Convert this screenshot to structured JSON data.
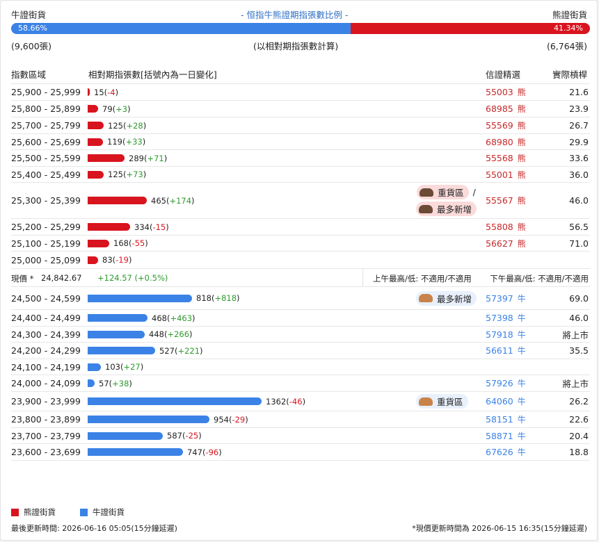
{
  "header": {
    "bull_title": "牛證街貨",
    "chart_title": "- 恒指牛熊證期指張數比例 -",
    "bear_title": "熊證街貨",
    "bull_pct": "58.66%",
    "bear_pct": "41.34%",
    "bull_ratio": 0.5866,
    "bull_count": "(9,600張)",
    "note": "(以相對期指張數計算)",
    "bear_count": "(6,764張)"
  },
  "columns": {
    "range": "指數區域",
    "contracts": "相對期指張數[括號內為一日變化]",
    "code": "信證精選",
    "leverage": "實際槓桿"
  },
  "max_contracts": 1362,
  "bear_rows": [
    {
      "range": "25,900 - 25,999",
      "value": 15,
      "value_text": "15",
      "change": "-4",
      "code": "55003",
      "type_label": "熊",
      "leverage": "21.6"
    },
    {
      "range": "25,800 - 25,899",
      "value": 79,
      "value_text": "79",
      "change": "+3",
      "code": "68985",
      "type_label": "熊",
      "leverage": "23.9"
    },
    {
      "range": "25,700 - 25,799",
      "value": 125,
      "value_text": "125",
      "change": "+28",
      "code": "55569",
      "type_label": "熊",
      "leverage": "26.7"
    },
    {
      "range": "25,600 - 25,699",
      "value": 119,
      "value_text": "119",
      "change": "+33",
      "code": "68980",
      "type_label": "熊",
      "leverage": "29.9"
    },
    {
      "range": "25,500 - 25,599",
      "value": 289,
      "value_text": "289",
      "change": "+71",
      "code": "55568",
      "type_label": "熊",
      "leverage": "33.6"
    },
    {
      "range": "25,400 - 25,499",
      "value": 125,
      "value_text": "125",
      "change": "+73",
      "code": "55001",
      "type_label": "熊",
      "leverage": "36.0"
    },
    {
      "range": "25,300 - 25,399",
      "value": 465,
      "value_text": "465",
      "change": "+174",
      "code": "55567",
      "type_label": "熊",
      "leverage": "46.0",
      "badges": [
        "重貨區",
        "最多新增"
      ],
      "slash": "/"
    },
    {
      "range": "25,200 - 25,299",
      "value": 334,
      "value_text": "334",
      "change": "-15",
      "code": "55808",
      "type_label": "熊",
      "leverage": "56.5"
    },
    {
      "range": "25,100 - 25,199",
      "value": 168,
      "value_text": "168",
      "change": "-55",
      "code": "56627",
      "type_label": "熊",
      "leverage": "71.0"
    },
    {
      "range": "25,000 - 25,099",
      "value": 83,
      "value_text": "83",
      "change": "-19",
      "code": "",
      "type_label": "",
      "leverage": ""
    }
  ],
  "spot": {
    "label": "現價 *",
    "price": "24,842.67",
    "change": "+124.57 (+0.5%)",
    "am": "上午最高/低: 不適用/不適用",
    "pm": "下午最高/低: 不適用/不適用"
  },
  "bull_rows": [
    {
      "range": "24,500 - 24,599",
      "value": 818,
      "value_text": "818",
      "change": "+818",
      "code": "57397",
      "type_label": "牛",
      "leverage": "69.0",
      "badges": [
        "最多新增"
      ]
    },
    {
      "range": "24,400 - 24,499",
      "value": 468,
      "value_text": "468",
      "change": "+463",
      "code": "57398",
      "type_label": "牛",
      "leverage": "46.0"
    },
    {
      "range": "24,300 - 24,399",
      "value": 448,
      "value_text": "448",
      "change": "+266",
      "code": "57918",
      "type_label": "牛",
      "leverage": "將上市"
    },
    {
      "range": "24,200 - 24,299",
      "value": 527,
      "value_text": "527",
      "change": "+221",
      "code": "56611",
      "type_label": "牛",
      "leverage": "35.5"
    },
    {
      "range": "24,100 - 24,199",
      "value": 103,
      "value_text": "103",
      "change": "+27",
      "code": "",
      "type_label": "",
      "leverage": ""
    },
    {
      "range": "24,000 - 24,099",
      "value": 57,
      "value_text": "57",
      "change": "+38",
      "code": "57926",
      "type_label": "牛",
      "leverage": "將上市"
    },
    {
      "range": "23,900 - 23,999",
      "value": 1362,
      "value_text": "1362",
      "change": "-46",
      "code": "64060",
      "type_label": "牛",
      "leverage": "26.2",
      "badges": [
        "重貨區"
      ]
    },
    {
      "range": "23,800 - 23,899",
      "value": 954,
      "value_text": "954",
      "change": "-29",
      "code": "58151",
      "type_label": "牛",
      "leverage": "22.6"
    },
    {
      "range": "23,700 - 23,799",
      "value": 587,
      "value_text": "587",
      "change": "-25",
      "code": "58871",
      "type_label": "牛",
      "leverage": "20.4"
    },
    {
      "range": "23,600 - 23,699",
      "value": 747,
      "value_text": "747",
      "change": "-96",
      "code": "67626",
      "type_label": "牛",
      "leverage": "18.8"
    }
  ],
  "legend": {
    "bear": "熊證街貨",
    "bull": "牛證街貨"
  },
  "footer": {
    "updated": "最後更新時間: 2026-06-16 05:05(15分鐘延遲)",
    "price_updated": "*現價更新時間為 2026-06-15 16:35(15分鐘延遲)"
  },
  "colors": {
    "bear": "#d8141f",
    "bull": "#3b82e6",
    "positive": "#2e9a2e"
  }
}
